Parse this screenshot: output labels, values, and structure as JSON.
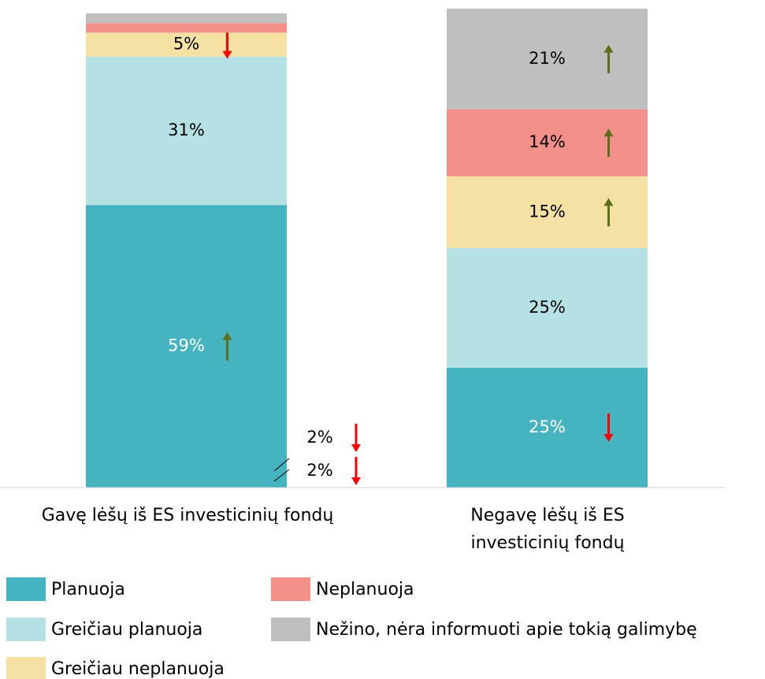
{
  "chart_data": {
    "type": "stacked_bar",
    "categories": [
      "Gavę lėšų iš ES investicinių fondų",
      "Negavę lėšų iš ES investicinių fondų"
    ],
    "ylim": [
      0,
      100
    ],
    "series": [
      {
        "name": "Planuoja",
        "color": "#46b3c0",
        "text_color": "#ffffff",
        "values": [
          59,
          25
        ],
        "trends": [
          "up",
          "down"
        ]
      },
      {
        "name": "Greičiau planuoja",
        "color": "#b5e1e4",
        "text_color": "#000000",
        "values": [
          31,
          25
        ],
        "trends": [
          null,
          null
        ]
      },
      {
        "name": "Greičiau neplanuoja",
        "color": "#f5e1a4",
        "text_color": "#000000",
        "values": [
          5,
          15
        ],
        "trends": [
          "down",
          "up"
        ]
      },
      {
        "name": "Neplanuoja",
        "color": "#f4908a",
        "text_color": "#000000",
        "values": [
          2,
          14
        ],
        "trends": [
          "down",
          "up"
        ]
      },
      {
        "name": "Nežino, nėra informuoti apie tokią galimybę",
        "color": "#bfbfbf",
        "text_color": "#000000",
        "values": [
          2,
          21
        ],
        "trends": [
          "down",
          "up"
        ]
      }
    ],
    "value_labels": [
      [
        "59%",
        "25%"
      ],
      [
        "31%",
        "25%"
      ],
      [
        "5%",
        "15%"
      ],
      [
        "2%",
        "14%"
      ],
      [
        "2%",
        "21%"
      ]
    ],
    "trend_colors": {
      "up": "#5a6e1e",
      "down": "#ff0000"
    }
  }
}
